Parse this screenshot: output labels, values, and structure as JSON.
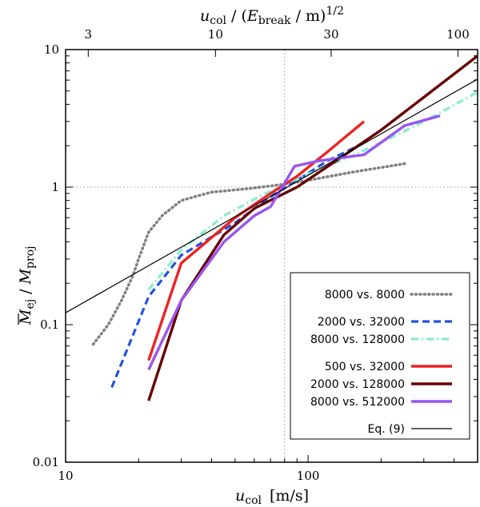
{
  "chart_data": {
    "type": "line",
    "x_scale": "log",
    "y_scale": "log",
    "xlim": [
      10,
      500
    ],
    "ylim": [
      0.01,
      10
    ],
    "x_ticks": [
      10,
      100
    ],
    "x_tick_labels": [
      "10",
      "100"
    ],
    "y_ticks": [
      0.01,
      0.1,
      1,
      10
    ],
    "y_tick_labels": [
      "0.01",
      "0.1",
      "1",
      "10"
    ],
    "top_axis": {
      "tick_positions": [
        12.4,
        41.5,
        124.5,
        414.9
      ],
      "tick_labels": [
        "3",
        "10",
        "30",
        "100"
      ]
    },
    "xlabel": {
      "var": "u",
      "sub": "col",
      "unit": "[m/s]"
    },
    "ylabel": {
      "var": "M",
      "sub": "ej",
      "denom": "M",
      "denom_sub": "proj"
    },
    "top_label": {
      "var": "u",
      "sub": "col",
      "mid": " / (",
      "var2": "E",
      "sub2": "break",
      "tail": " / m)",
      "exp": "1/2"
    },
    "grid": {
      "vertical_dotted_at": 80,
      "horizontal_dotted_at": 1
    },
    "legend_position": "bottom-right",
    "series": [
      {
        "name": "8000 vs. 8000",
        "color": "#808080",
        "style": "dotted",
        "group": 0,
        "points": [
          [
            13,
            0.072
          ],
          [
            15,
            0.1
          ],
          [
            17,
            0.15
          ],
          [
            19,
            0.23
          ],
          [
            20,
            0.3
          ],
          [
            22,
            0.47
          ],
          [
            25,
            0.62
          ],
          [
            30,
            0.8
          ],
          [
            40,
            0.92
          ],
          [
            55,
            0.97
          ],
          [
            80,
            1.05
          ],
          [
            100,
            1.12
          ],
          [
            150,
            1.28
          ],
          [
            250,
            1.48
          ]
        ]
      },
      {
        "name": "2000 vs. 32000",
        "color": "#2255dd",
        "style": "dashed",
        "group": 1,
        "points": [
          [
            15.5,
            0.035
          ],
          [
            22,
            0.16
          ],
          [
            30,
            0.32
          ],
          [
            50,
            0.55
          ],
          [
            70,
            0.85
          ],
          [
            90,
            1.12
          ],
          [
            120,
            1.55
          ],
          [
            170,
            2.1
          ]
        ]
      },
      {
        "name": "8000 vs. 128000",
        "color": "#88eecc",
        "style": "dashdot",
        "group": 1,
        "points": [
          [
            22,
            0.18
          ],
          [
            30,
            0.35
          ],
          [
            45,
            0.62
          ],
          [
            65,
            0.88
          ],
          [
            90,
            1.15
          ],
          [
            130,
            1.5
          ],
          [
            200,
            2.1
          ],
          [
            300,
            3.0
          ],
          [
            500,
            4.9
          ]
        ]
      },
      {
        "name": "500 vs. 32000",
        "color": "#ee2222",
        "style": "solid",
        "group": 2,
        "points": [
          [
            22,
            0.055
          ],
          [
            30,
            0.28
          ],
          [
            50,
            0.6
          ],
          [
            70,
            0.9
          ],
          [
            90,
            1.2
          ],
          [
            120,
            1.8
          ],
          [
            170,
            3.0
          ]
        ]
      },
      {
        "name": "2000 vs. 128000",
        "color": "#660000",
        "style": "solid",
        "group": 2,
        "points": [
          [
            22,
            0.028
          ],
          [
            30,
            0.15
          ],
          [
            45,
            0.45
          ],
          [
            60,
            0.7
          ],
          [
            90,
            1.0
          ],
          [
            130,
            1.55
          ],
          [
            200,
            2.6
          ],
          [
            300,
            4.5
          ],
          [
            500,
            9.0
          ]
        ]
      },
      {
        "name": "8000 vs. 512000",
        "color": "#9955ee",
        "style": "solid",
        "group": 2,
        "points": [
          [
            22,
            0.047
          ],
          [
            30,
            0.15
          ],
          [
            45,
            0.4
          ],
          [
            60,
            0.62
          ],
          [
            70,
            0.72
          ],
          [
            88,
            1.42
          ],
          [
            110,
            1.55
          ],
          [
            170,
            1.72
          ],
          [
            250,
            2.8
          ],
          [
            350,
            3.3
          ]
        ]
      },
      {
        "name": "Eq. (9)",
        "color": "#000000",
        "style": "thin",
        "group": 3,
        "points": [
          [
            10,
            0.122
          ],
          [
            500,
            6.1
          ]
        ]
      }
    ]
  }
}
